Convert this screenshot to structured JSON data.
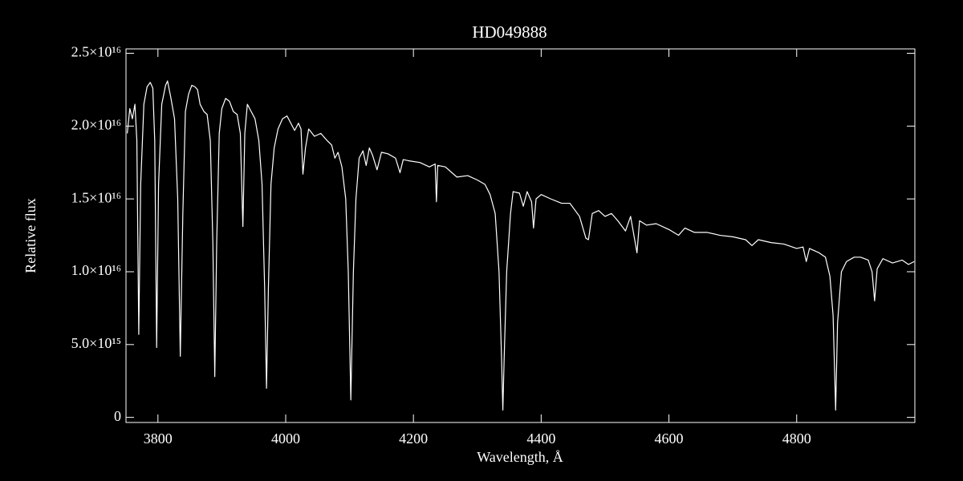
{
  "chart_data": {
    "type": "line",
    "title": "HD049888",
    "x_label": "Wavelength, Å",
    "y_label": "Relative flux",
    "color": "#ffffff",
    "xlim": [
      3750,
      4985
    ],
    "xticks": [
      3800,
      4000,
      4200,
      4400,
      4600,
      4800
    ],
    "ylim": [
      -350000000000000.0,
      2.53e+16
    ],
    "yticks": [
      {
        "value": 0,
        "label": "0"
      },
      {
        "value": 5000000000000000.0,
        "label": "5.0×10¹⁵"
      },
      {
        "value": 1e+16,
        "label": "1.0×10¹⁶"
      },
      {
        "value": 1.5e+16,
        "label": "1.5×10¹⁶"
      },
      {
        "value": 2e+16,
        "label": "2.0×10¹⁶"
      },
      {
        "value": 2.5e+16,
        "label": "2.5×10¹⁶"
      }
    ],
    "series": [
      {
        "name": "HD049888",
        "x": [
          3752,
          3756,
          3760,
          3764,
          3767,
          3770,
          3773,
          3778,
          3783,
          3788,
          3792,
          3795,
          3798,
          3801,
          3806,
          3812,
          3815,
          3820,
          3826,
          3831,
          3835,
          3839,
          3843,
          3848,
          3853,
          3858,
          3862,
          3866,
          3872,
          3877,
          3882,
          3886,
          3889,
          3892,
          3896,
          3900,
          3906,
          3912,
          3918,
          3924,
          3929,
          3933,
          3936,
          3940,
          3946,
          3952,
          3958,
          3963,
          3967,
          3970,
          3973,
          3977,
          3982,
          3988,
          3995,
          4002,
          4008,
          4014,
          4020,
          4024,
          4027,
          4031,
          4036,
          4045,
          4055,
          4065,
          4072,
          4077,
          4082,
          4088,
          4094,
          4098,
          4102,
          4106,
          4110,
          4115,
          4121,
          4126,
          4131,
          4136,
          4143,
          4150,
          4160,
          4172,
          4179,
          4184,
          4195,
          4210,
          4225,
          4234,
          4236,
          4238,
          4250,
          4268,
          4285,
          4300,
          4312,
          4320,
          4328,
          4334,
          4338,
          4340,
          4342,
          4346,
          4352,
          4356,
          4366,
          4372,
          4378,
          4385,
          4388,
          4392,
          4400,
          4415,
          4432,
          4445,
          4460,
          4470,
          4474,
          4480,
          4490,
          4500,
          4510,
          4520,
          4532,
          4540,
          4550,
          4554,
          4565,
          4580,
          4600,
          4615,
          4625,
          4640,
          4660,
          4680,
          4700,
          4720,
          4730,
          4740,
          4760,
          4780,
          4800,
          4810,
          4815,
          4820,
          4835,
          4845,
          4852,
          4857,
          4861,
          4864,
          4870,
          4878,
          4890,
          4900,
          4912,
          4918,
          4922,
          4926,
          4935,
          4950,
          4965,
          4975,
          4984
        ],
        "values": [
          1.95e+16,
          2.12e+16,
          2.05e+16,
          2.15e+16,
          1.9e+16,
          5700000000000000.0,
          1.6e+16,
          2.15e+16,
          2.27e+16,
          2.3e+16,
          2.26e+16,
          1.9e+16,
          4800000000000000.0,
          1.6e+16,
          2.15e+16,
          2.28e+16,
          2.31e+16,
          2.2e+16,
          2.05e+16,
          1.5e+16,
          4200000000000000.0,
          1.4e+16,
          2.1e+16,
          2.22e+16,
          2.28e+16,
          2.27e+16,
          2.25e+16,
          2.15e+16,
          2.1e+16,
          2.08e+16,
          1.9e+16,
          1.2e+16,
          2800000000000000.0,
          1.2e+16,
          1.95e+16,
          2.12e+16,
          2.19e+16,
          2.17e+16,
          2.1e+16,
          2.08e+16,
          1.95e+16,
          1.31e+16,
          1.95e+16,
          2.15e+16,
          2.1e+16,
          2.05e+16,
          1.9e+16,
          1.6e+16,
          9000000000000000.0,
          2000000000000000.0,
          9000000000000000.0,
          1.6e+16,
          1.85e+16,
          1.98e+16,
          2.05e+16,
          2.07e+16,
          2.02e+16,
          1.97e+16,
          2.02e+16,
          1.98e+16,
          1.67e+16,
          1.85e+16,
          1.98e+16,
          1.93e+16,
          1.95e+16,
          1.9e+16,
          1.87e+16,
          1.78e+16,
          1.82e+16,
          1.72e+16,
          1.5e+16,
          1e+16,
          1200000000000000.0,
          1e+16,
          1.5e+16,
          1.78e+16,
          1.83e+16,
          1.73e+16,
          1.85e+16,
          1.8e+16,
          1.7e+16,
          1.82e+16,
          1.81e+16,
          1.78e+16,
          1.68e+16,
          1.77e+16,
          1.76e+16,
          1.75e+16,
          1.72e+16,
          1.74e+16,
          1.48e+16,
          1.73e+16,
          1.72e+16,
          1.65e+16,
          1.66e+16,
          1.63e+16,
          1.6e+16,
          1.53e+16,
          1.4e+16,
          1e+16,
          4000000000000000.0,
          500000000000000.0,
          4000000000000000.0,
          1e+16,
          1.4e+16,
          1.55e+16,
          1.54e+16,
          1.45e+16,
          1.55e+16,
          1.48e+16,
          1.3e+16,
          1.5e+16,
          1.53e+16,
          1.5e+16,
          1.47e+16,
          1.47e+16,
          1.38e+16,
          1.23e+16,
          1.22e+16,
          1.4e+16,
          1.42e+16,
          1.38e+16,
          1.4e+16,
          1.35e+16,
          1.28e+16,
          1.38e+16,
          1.13e+16,
          1.35e+16,
          1.32e+16,
          1.33e+16,
          1.29e+16,
          1.25e+16,
          1.3e+16,
          1.27e+16,
          1.27e+16,
          1.25e+16,
          1.24e+16,
          1.22e+16,
          1.18e+16,
          1.22e+16,
          1.2e+16,
          1.19e+16,
          1.16e+16,
          1.17e+16,
          1.07e+16,
          1.16e+16,
          1.13e+16,
          1.1e+16,
          9700000000000000.0,
          7000000000000000.0,
          500000000000000.0,
          6500000000000000.0,
          1e+16,
          1.07e+16,
          1.1e+16,
          1.1e+16,
          1.08e+16,
          1e+16,
          8000000000000000.0,
          1.02e+16,
          1.09e+16,
          1.06e+16,
          1.08e+16,
          1.05e+16,
          1.07e+16
        ]
      }
    ]
  }
}
